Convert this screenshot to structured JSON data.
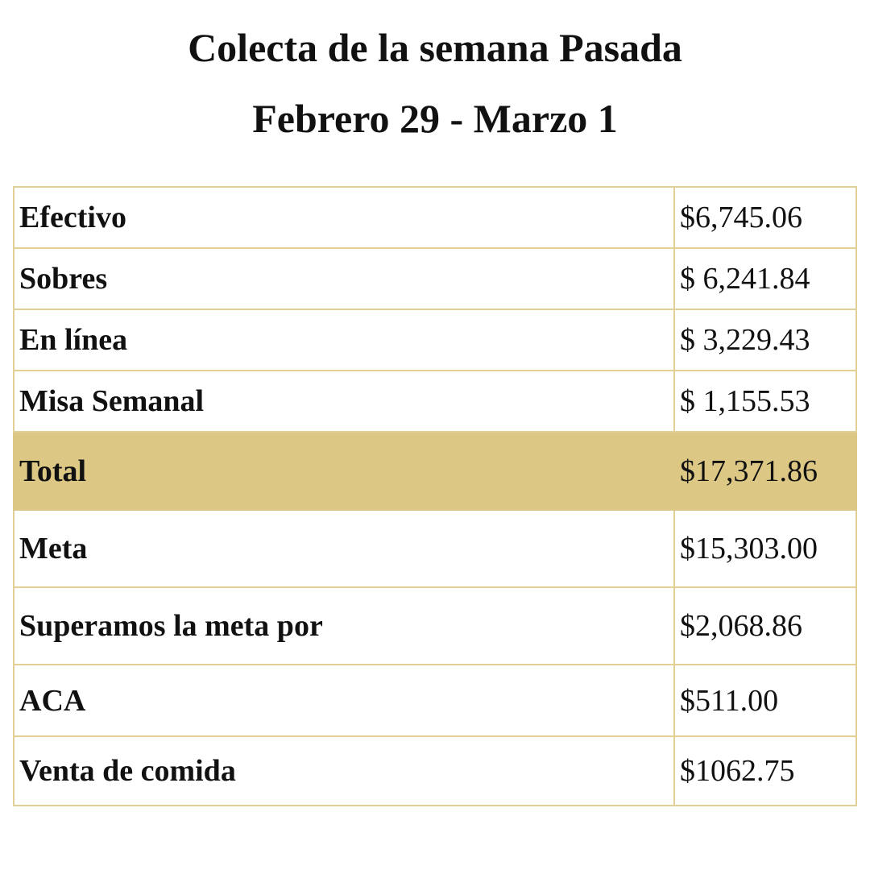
{
  "header": {
    "title": "Colecta de la semana Pasada",
    "subtitle": "Febrero 29 - Marzo 1"
  },
  "table": {
    "rows": [
      [
        "Efectivo",
        "$6,745.06"
      ],
      [
        "Sobres",
        "$ 6,241.84"
      ],
      [
        "En línea",
        "$ 3,229.43"
      ],
      [
        "Misa Semanal",
        "$ 1,155.53"
      ],
      [
        "Total",
        "$17,371.86"
      ],
      [
        "Meta",
        "$15,303.00"
      ],
      [
        "Superamos la meta por",
        "$2,068.86"
      ],
      [
        "ACA",
        "$511.00"
      ],
      [
        "Venta de comida",
        "$1062.75"
      ]
    ]
  }
}
